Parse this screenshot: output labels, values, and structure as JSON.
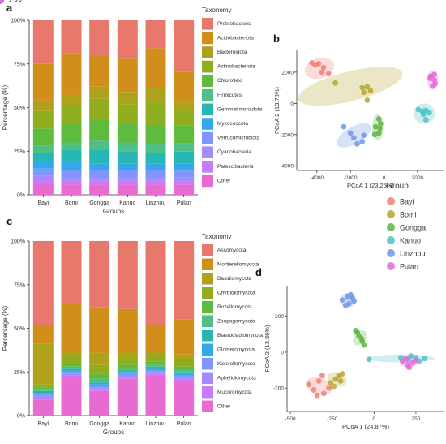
{
  "panels": {
    "a": "a",
    "b": "b",
    "c": "c",
    "d": "d"
  },
  "chart_data": [
    {
      "panel": "a",
      "type": "bar",
      "stacked": true,
      "xlabel": "Groups",
      "ylabel": "Percentage (%)",
      "yticks": [
        "0%",
        "25%",
        "50%",
        "75%",
        "100%"
      ],
      "ylim": [
        0,
        100
      ],
      "legend_title": "Taxonomy",
      "legend_position": "right",
      "categories": [
        "Bayi",
        "Bomi",
        "Gongga",
        "Kanuo",
        "Linzhou",
        "Pulan"
      ],
      "series": [
        {
          "name": "Other",
          "color": "#e76bd0",
          "values": [
            7,
            6,
            6,
            6,
            6,
            6
          ]
        },
        {
          "name": "Patescibacteria",
          "color": "#c77cff",
          "values": [
            2,
            2,
            2,
            2,
            2,
            2
          ]
        },
        {
          "name": "Cyanobacteria",
          "color": "#a58aff",
          "values": [
            2,
            2,
            2,
            2,
            2,
            2
          ]
        },
        {
          "name": "Verrucomicrobiota",
          "color": "#7f96ff",
          "values": [
            4,
            4,
            4,
            4,
            4,
            4
          ]
        },
        {
          "name": "Myxococcota",
          "color": "#33a9ea",
          "values": [
            4,
            5,
            4,
            4,
            4,
            4
          ]
        },
        {
          "name": "Gemmatimonadota",
          "color": "#26b7b4",
          "values": [
            5,
            7,
            8,
            7,
            6,
            7
          ]
        },
        {
          "name": "Firmicutes",
          "color": "#4fbf86",
          "values": [
            4,
            4,
            5,
            5,
            5,
            5
          ]
        },
        {
          "name": "Chloroflexi",
          "color": "#5fbb3d",
          "values": [
            10,
            11,
            12,
            11,
            11,
            10
          ]
        },
        {
          "name": "Actinobacteriota",
          "color": "#8fad1f",
          "values": [
            10,
            10,
            12,
            11,
            13,
            9
          ]
        },
        {
          "name": "Bacteroidota",
          "color": "#b0a11c",
          "values": [
            6,
            6,
            7,
            7,
            8,
            5
          ]
        },
        {
          "name": "Acidobacteriota",
          "color": "#d08f1b",
          "values": [
            21,
            24,
            18,
            19,
            23,
            17
          ]
        },
        {
          "name": "Proteobacteria",
          "color": "#e8786c",
          "values": [
            25,
            19,
            20,
            22,
            16,
            30
          ]
        }
      ]
    },
    {
      "panel": "b",
      "type": "scatter",
      "xlabel": "PCoA 1 (23.25%)",
      "ylabel": "PCoA 2 (13.78%)",
      "xlim": [
        -5200,
        3600
      ],
      "ylim": [
        -4300,
        3400
      ],
      "xticks": [
        -4000,
        -2000,
        0,
        2000
      ],
      "xtick_labels": [
        "-4000",
        "-2000",
        "0",
        "2000"
      ],
      "yticks": [
        -4000,
        -2000,
        0,
        2000
      ],
      "ytick_labels": [
        "-4000",
        "-2000",
        "0",
        "2000"
      ],
      "legend_title": "Group",
      "legend_position": "bottom-right",
      "groups": [
        {
          "name": "Bayi",
          "color": "#f08075",
          "points": [
            [
              -4300,
              2600
            ],
            [
              -3900,
              2550
            ],
            [
              -3600,
              2300
            ],
            [
              -3700,
              2000
            ],
            [
              -3300,
              1900
            ],
            [
              -4100,
              2450
            ]
          ],
          "ellipse": {
            "cx": -3850,
            "cy": 2250,
            "rx": 900,
            "ry": 650,
            "angle": -18
          }
        },
        {
          "name": "Bomi",
          "color": "#b8a530",
          "points": [
            [
              -2900,
              1300
            ],
            [
              -1300,
              1000
            ],
            [
              -1000,
              1050
            ],
            [
              -800,
              800
            ],
            [
              -1200,
              700
            ],
            [
              -1000,
              200
            ]
          ],
          "ellipse": {
            "cx": -2000,
            "cy": 1100,
            "rx": 3200,
            "ry": 950,
            "angle": -14
          }
        },
        {
          "name": "Gongga",
          "color": "#5fb544",
          "points": [
            [
              -300,
              -1000
            ],
            [
              -500,
              -1500
            ],
            [
              -250,
              -1600
            ],
            [
              -550,
              -2000
            ],
            [
              -300,
              -1900
            ],
            [
              -200,
              -1300
            ]
          ],
          "ellipse": {
            "cx": -380,
            "cy": -1550,
            "rx": 330,
            "ry": 850,
            "angle": 0
          }
        },
        {
          "name": "Kanuo",
          "color": "#4fc1c6",
          "points": [
            [
              2050,
              -400
            ],
            [
              2300,
              -500
            ],
            [
              2500,
              -450
            ],
            [
              2700,
              -600
            ],
            [
              2500,
              -1050
            ],
            [
              2350,
              -700
            ]
          ],
          "ellipse": {
            "cx": 2400,
            "cy": -650,
            "rx": 650,
            "ry": 650,
            "angle": 0
          }
        },
        {
          "name": "Linzhou",
          "color": "#6f98e8",
          "points": [
            [
              -2400,
              -1500
            ],
            [
              -2000,
              -1900
            ],
            [
              -1800,
              -2200
            ],
            [
              -1600,
              -2600
            ],
            [
              -1300,
              -2450
            ],
            [
              -1200,
              -2050
            ]
          ],
          "ellipse": {
            "cx": -1800,
            "cy": -2050,
            "rx": 1150,
            "ry": 550,
            "angle": -30
          }
        },
        {
          "name": "Pulan",
          "color": "#e46ad6",
          "points": [
            [
              2750,
              1600
            ],
            [
              3000,
              1500
            ],
            [
              3050,
              1250
            ],
            [
              2900,
              1100
            ],
            [
              2800,
              1750
            ],
            [
              3000,
              1850
            ]
          ],
          "ellipse": {
            "cx": 2900,
            "cy": 1500,
            "rx": 350,
            "ry": 600,
            "angle": 0
          }
        }
      ]
    },
    {
      "panel": "c",
      "type": "bar",
      "stacked": true,
      "xlabel": "Groups",
      "ylabel": "Percentage (%)",
      "yticks": [
        "0%",
        "25%",
        "50%",
        "75%",
        "100%"
      ],
      "ylim": [
        0,
        100
      ],
      "legend_title": "Taxonomy",
      "legend_position": "right",
      "categories": [
        "Bayi",
        "Bomi",
        "Gongga",
        "Kanuo",
        "Linzhou",
        "Pulan"
      ],
      "series": [
        {
          "name": "Other",
          "color": "#e76bd0",
          "values": [
            9,
            22,
            14,
            21,
            23,
            20
          ]
        },
        {
          "name": "Mucoromycota",
          "color": "#c77cff",
          "values": [
            1,
            1,
            1,
            1,
            1,
            1
          ]
        },
        {
          "name": "Aphelidiomycota",
          "color": "#a58aff",
          "values": [
            1,
            1,
            1,
            1,
            1,
            1
          ]
        },
        {
          "name": "Kickxellomycota",
          "color": "#7f96ff",
          "values": [
            1,
            1,
            1,
            1,
            1,
            1
          ]
        },
        {
          "name": "Glomeromycota",
          "color": "#33a9ea",
          "values": [
            1,
            1,
            1,
            1,
            1,
            1
          ]
        },
        {
          "name": "Blastocladiomycota",
          "color": "#26b7b4",
          "values": [
            1,
            1,
            1,
            1,
            1,
            1
          ]
        },
        {
          "name": "Zoopagomycota",
          "color": "#4fbf86",
          "values": [
            1,
            1,
            2,
            1,
            1,
            1
          ]
        },
        {
          "name": "Rozellomycota",
          "color": "#5fbb3d",
          "values": [
            1,
            2,
            3,
            2,
            2,
            2
          ]
        },
        {
          "name": "Chytridiomycota",
          "color": "#8fad1f",
          "values": [
            2,
            4,
            5,
            4,
            3,
            4
          ]
        },
        {
          "name": "Basidiomycota",
          "color": "#b0a11c",
          "values": [
            23,
            3,
            7,
            4,
            3,
            3
          ]
        },
        {
          "name": "Mortierellomycota",
          "color": "#d08f1b",
          "values": [
            11,
            27,
            26,
            24,
            15,
            20
          ]
        },
        {
          "name": "Ascomycota",
          "color": "#e8786c",
          "values": [
            48,
            36,
            38,
            39,
            48,
            45
          ]
        }
      ]
    },
    {
      "panel": "d",
      "type": "scatter",
      "xlabel": "PCoA 1 (24.87%)",
      "ylabel": "PCoA 2 (13.86%)",
      "xlim": [
        -520,
        420
      ],
      "ylim": [
        -330,
        370
      ],
      "xticks": [
        -500,
        -250,
        0,
        250
      ],
      "xtick_labels": [
        "-500",
        "-250",
        "0",
        "250"
      ],
      "yticks": [
        -200,
        0,
        200
      ],
      "ytick_labels": [
        "-200",
        "0",
        "200"
      ],
      "groups": [
        {
          "name": "Bayi",
          "color": "#f08075",
          "points": [
            [
              -390,
              -180
            ],
            [
              -360,
              -210
            ],
            [
              -330,
              -160
            ],
            [
              -300,
              -230
            ],
            [
              -270,
              -200
            ],
            [
              -340,
              -240
            ],
            [
              -310,
              -130
            ]
          ],
          "ellipse": {
            "cx": -330,
            "cy": -190,
            "rx": 80,
            "ry": 48,
            "angle": 20
          }
        },
        {
          "name": "Bomi",
          "color": "#b8a530",
          "points": [
            [
              -260,
              -170
            ],
            [
              -230,
              -150
            ],
            [
              -210,
              -130
            ],
            [
              -190,
              -120
            ],
            [
              -240,
              -190
            ],
            [
              -200,
              -160
            ]
          ],
          "ellipse": {
            "cx": -220,
            "cy": -150,
            "rx": 60,
            "ry": 35,
            "angle": 25
          }
        },
        {
          "name": "Gongga",
          "color": "#5fb544",
          "points": [
            [
              -110,
              120
            ],
            [
              -90,
              90
            ],
            [
              -70,
              60
            ],
            [
              -60,
              40
            ],
            [
              -100,
              110
            ],
            [
              -75,
              75
            ]
          ],
          "ellipse": {
            "cx": -85,
            "cy": 80,
            "rx": 50,
            "ry": 32,
            "angle": -50
          }
        },
        {
          "name": "Kanuo",
          "color": "#4fc1c6",
          "points": [
            [
              -30,
              -40
            ],
            [
              160,
              -30
            ],
            [
              200,
              -40
            ],
            [
              250,
              -30
            ],
            [
              300,
              -35
            ],
            [
              270,
              -50
            ],
            [
              220,
              -20
            ]
          ],
          "ellipse": {
            "cx": 160,
            "cy": -35,
            "rx": 200,
            "ry": 22,
            "angle": 0
          }
        },
        {
          "name": "Linzhou",
          "color": "#6f98e8",
          "points": [
            [
              -190,
              290
            ],
            [
              -160,
              310
            ],
            [
              -130,
              300
            ],
            [
              -150,
              270
            ],
            [
              -120,
              285
            ],
            [
              -170,
              260
            ],
            [
              -140,
              320
            ]
          ],
          "ellipse": {
            "cx": -155,
            "cy": 290,
            "rx": 50,
            "ry": 40,
            "angle": 0
          }
        },
        {
          "name": "Pulan",
          "color": "#e46ad6",
          "points": [
            [
              170,
              -50
            ],
            [
              200,
              -70
            ],
            [
              230,
              -60
            ],
            [
              250,
              -45
            ],
            [
              210,
              -85
            ],
            [
              190,
              -35
            ]
          ],
          "ellipse": {
            "cx": 210,
            "cy": -55,
            "rx": 55,
            "ry": 32,
            "angle": 0
          }
        }
      ]
    }
  ]
}
